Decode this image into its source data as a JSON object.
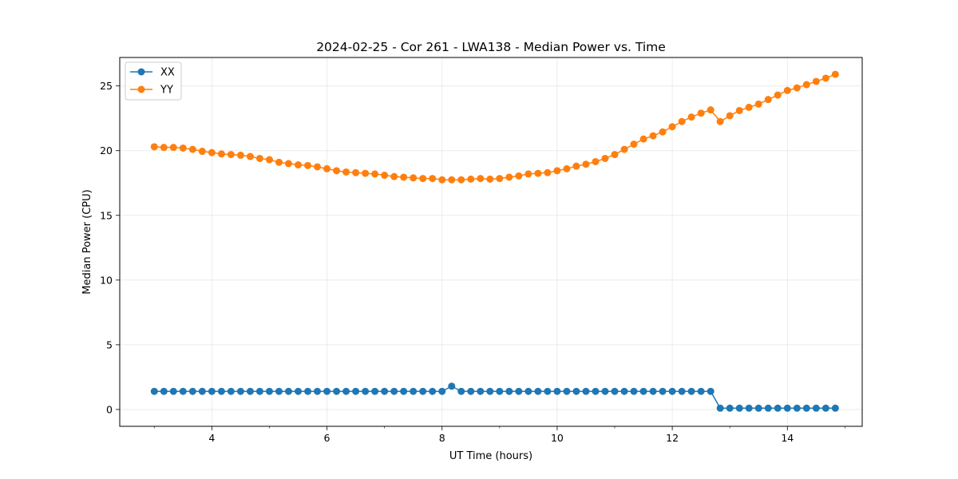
{
  "chart_data": {
    "type": "line",
    "title": "2024-02-25 - Cor 261 - LWA138 - Median Power vs. Time",
    "xlabel": "UT Time (hours)",
    "ylabel": "Median Power (CPU)",
    "xlim": [
      2.4,
      15.3
    ],
    "ylim": [
      -1.3,
      27.2
    ],
    "xticks": [
      4,
      6,
      8,
      10,
      12,
      14
    ],
    "yticks": [
      0,
      5,
      10,
      15,
      20,
      25
    ],
    "grid": true,
    "legend_position": "top-left",
    "x": [
      3.0,
      3.167,
      3.333,
      3.5,
      3.667,
      3.833,
      4.0,
      4.167,
      4.333,
      4.5,
      4.667,
      4.833,
      5.0,
      5.167,
      5.333,
      5.5,
      5.667,
      5.833,
      6.0,
      6.167,
      6.333,
      6.5,
      6.667,
      6.833,
      7.0,
      7.167,
      7.333,
      7.5,
      7.667,
      7.833,
      8.0,
      8.167,
      8.333,
      8.5,
      8.667,
      8.833,
      9.0,
      9.167,
      9.333,
      9.5,
      9.667,
      9.833,
      10.0,
      10.167,
      10.333,
      10.5,
      10.667,
      10.833,
      11.0,
      11.167,
      11.333,
      11.5,
      11.667,
      11.833,
      12.0,
      12.167,
      12.333,
      12.5,
      12.667,
      12.833,
      13.0,
      13.167,
      13.333,
      13.5,
      13.667,
      13.833,
      14.0,
      14.167,
      14.333,
      14.5,
      14.667,
      14.833
    ],
    "series": [
      {
        "name": "XX",
        "color": "#1f77b4",
        "values": [
          1.4,
          1.4,
          1.4,
          1.4,
          1.4,
          1.4,
          1.4,
          1.4,
          1.4,
          1.4,
          1.4,
          1.4,
          1.4,
          1.4,
          1.4,
          1.4,
          1.4,
          1.4,
          1.4,
          1.4,
          1.4,
          1.4,
          1.4,
          1.4,
          1.4,
          1.4,
          1.4,
          1.4,
          1.4,
          1.4,
          1.4,
          1.8,
          1.4,
          1.4,
          1.4,
          1.4,
          1.4,
          1.4,
          1.4,
          1.4,
          1.4,
          1.4,
          1.4,
          1.4,
          1.4,
          1.4,
          1.4,
          1.4,
          1.4,
          1.4,
          1.4,
          1.4,
          1.4,
          1.4,
          1.4,
          1.4,
          1.4,
          1.4,
          1.4,
          0.1,
          0.1,
          0.1,
          0.1,
          0.1,
          0.1,
          0.1,
          0.1,
          0.1,
          0.1,
          0.1,
          0.1,
          0.1
        ]
      },
      {
        "name": "YY",
        "color": "#ff7f0e",
        "values": [
          20.3,
          20.25,
          20.25,
          20.2,
          20.1,
          19.95,
          19.85,
          19.75,
          19.7,
          19.65,
          19.55,
          19.4,
          19.3,
          19.1,
          19.0,
          18.9,
          18.85,
          18.75,
          18.6,
          18.45,
          18.35,
          18.3,
          18.25,
          18.2,
          18.1,
          18.0,
          17.95,
          17.9,
          17.85,
          17.85,
          17.75,
          17.75,
          17.75,
          17.8,
          17.85,
          17.8,
          17.85,
          17.95,
          18.05,
          18.2,
          18.25,
          18.3,
          18.45,
          18.6,
          18.8,
          18.95,
          19.15,
          19.4,
          19.7,
          20.1,
          20.5,
          20.9,
          21.15,
          21.45,
          21.85,
          22.25,
          22.6,
          22.9,
          23.15,
          22.25,
          22.7,
          23.1,
          23.35,
          23.6,
          23.95,
          24.3,
          24.65,
          24.85,
          25.1,
          25.35,
          25.6,
          25.9
        ]
      }
    ]
  }
}
